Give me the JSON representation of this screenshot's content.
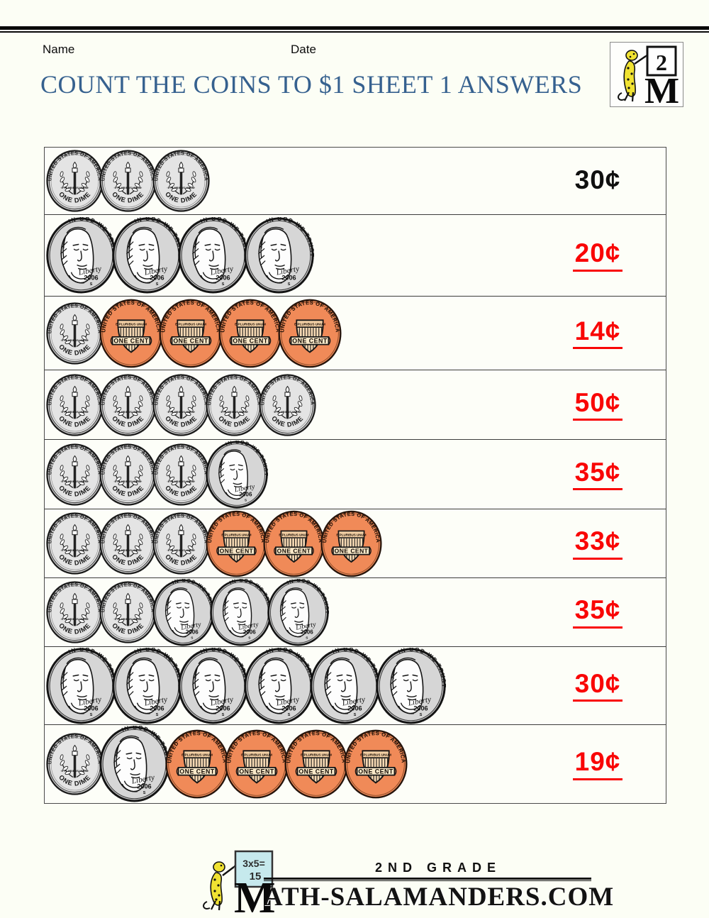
{
  "header": {
    "name_label": "Name",
    "date_label": "Date",
    "title": "COUNT THE COINS TO $1 SHEET 1 ANSWERS"
  },
  "corner_logo": {
    "grade_number": "2",
    "letter": "M"
  },
  "coin_types": {
    "dime": {
      "top_text": "UNITED STATES OF AMERICA",
      "mid_text": "·E PLURIBUS UNUM·",
      "bottom_text": "ONE DIME"
    },
    "nickel": {
      "top_text": "IN GOD WE TRUST",
      "script_text": "Liberty",
      "date_text": "2006",
      "mint_text": "S"
    },
    "penny": {
      "top_text": "UNITED STATES OF AMERICA",
      "band_text": "E PLURIBUS UNUM",
      "banner_text": "ONE CENT"
    }
  },
  "rows": [
    {
      "coins": [
        "dime",
        "dime",
        "dime"
      ],
      "answer": "30¢",
      "answered": false
    },
    {
      "coins": [
        "nickel",
        "nickel",
        "nickel",
        "nickel"
      ],
      "answer": "20¢",
      "answered": true
    },
    {
      "coins": [
        "dime",
        "penny",
        "penny",
        "penny",
        "penny"
      ],
      "answer": "14¢",
      "answered": true
    },
    {
      "coins": [
        "dime",
        "dime",
        "dime",
        "dime",
        "dime"
      ],
      "answer": "50¢",
      "answered": true
    },
    {
      "coins": [
        "dime",
        "dime",
        "dime",
        "nickel"
      ],
      "answer": "35¢",
      "answered": true
    },
    {
      "coins": [
        "dime",
        "dime",
        "dime",
        "penny",
        "penny",
        "penny"
      ],
      "answer": "33¢",
      "answered": true
    },
    {
      "coins": [
        "dime",
        "dime",
        "nickel",
        "nickel",
        "nickel"
      ],
      "answer": "35¢",
      "answered": true
    },
    {
      "coins": [
        "nickel",
        "nickel",
        "nickel",
        "nickel",
        "nickel",
        "nickel"
      ],
      "answer": "30¢",
      "answered": true
    },
    {
      "coins": [
        "dime",
        "nickel",
        "penny",
        "penny",
        "penny",
        "penny"
      ],
      "answer": "19¢",
      "answered": true
    }
  ],
  "footer": {
    "grade_text": "2ND GRADE",
    "site_text": "ATH-SALAMANDERS.COM",
    "board_line1": "3x5=",
    "board_line2": "15"
  },
  "colors": {
    "title_blue": "#36618f",
    "answer_red": "#f90606",
    "coin_silver": "#d8d8d8",
    "nickel_silver": "#cecece",
    "penny_orange": "#f08a58",
    "shield_cream": "#f6d9b4",
    "banner_cream": "#f9e9c9",
    "salamander_yellow": "#f0e232",
    "board_blue": "#c6e9ed"
  }
}
